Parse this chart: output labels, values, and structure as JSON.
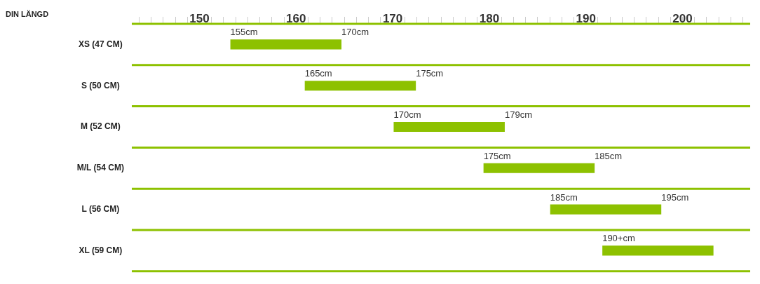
{
  "chart_data": {
    "type": "bar",
    "orientation": "horizontal",
    "xlabel": "DIN LÄNGD",
    "categories": [
      "XS (47 CM)",
      "S (50 CM)",
      "M (52 CM)",
      "M/L (54 CM)",
      "L (56 CM)",
      "XL (59 CM)"
    ],
    "base": [
      153.2,
      160.9,
      170.1,
      179.4,
      186.3,
      191.7
    ],
    "values": [
      11.5,
      11.5,
      11.5,
      11.5,
      11.5,
      11.5
    ],
    "color": "#8dc100",
    "xlim": [
      143,
      207
    ],
    "xticks": [
      {
        "value": 143.75,
        "label": null
      },
      {
        "value": 145,
        "label": null
      },
      {
        "value": 146.25,
        "label": null
      },
      {
        "value": 147.5,
        "label": null
      },
      {
        "value": 148.75,
        "label": null
      },
      150,
      {
        "value": 151.25,
        "label": null
      },
      {
        "value": 152.5,
        "label": null
      },
      {
        "value": 153.75,
        "label": null
      },
      {
        "value": 155,
        "label": null
      },
      {
        "value": 156.25,
        "label": null
      },
      {
        "value": 157.5,
        "label": null
      },
      {
        "value": 158.75,
        "label": null
      },
      160,
      {
        "value": 161.25,
        "label": null
      },
      {
        "value": 162.5,
        "label": null
      },
      {
        "value": 163.75,
        "label": null
      },
      {
        "value": 165,
        "label": null
      },
      {
        "value": 166.25,
        "label": null
      },
      {
        "value": 167.5,
        "label": null
      },
      {
        "value": 168.75,
        "label": null
      },
      170,
      {
        "value": 171.25,
        "label": null
      },
      {
        "value": 172.5,
        "label": null
      },
      {
        "value": 173.75,
        "label": null
      },
      {
        "value": 175,
        "label": null
      },
      {
        "value": 176.25,
        "label": null
      },
      {
        "value": 177.5,
        "label": null
      },
      {
        "value": 178.75,
        "label": null
      },
      180,
      {
        "value": 181.25,
        "label": null
      },
      {
        "value": 182.5,
        "label": null
      },
      {
        "value": 183.75,
        "label": null
      },
      {
        "value": 185,
        "label": null
      },
      {
        "value": 186.25,
        "label": null
      },
      {
        "value": 187.5,
        "label": null
      },
      {
        "value": 188.75,
        "label": null
      },
      190,
      {
        "value": 191.25,
        "label": null
      },
      {
        "value": 192.5,
        "label": null
      },
      {
        "value": 193.75,
        "label": null
      },
      {
        "value": 195,
        "label": null
      },
      {
        "value": 196.25,
        "label": null
      },
      {
        "value": 197.5,
        "label": null
      },
      {
        "value": 198.75,
        "label": null
      },
      200,
      {
        "value": 201.25,
        "label": null
      },
      {
        "value": 202.5,
        "label": null
      },
      {
        "value": 203.75,
        "label": null
      },
      {
        "value": 205,
        "label": null
      },
      {
        "value": 206.25,
        "label": null
      }
    ],
    "grid": "y",
    "legend": false,
    "annotations": [
      {
        "text": "155cm",
        "x": 153.2,
        "y": "XS (47 CM)"
      },
      {
        "text": "170cm",
        "x": 164.7,
        "y": "XS (47 CM)"
      },
      {
        "text": "165cm",
        "x": 160.9,
        "y": "S (50 CM)"
      },
      {
        "text": "175cm",
        "x": 172.4,
        "y": "S (50 CM)"
      },
      {
        "text": "170cm",
        "x": 170.1,
        "y": "M (52 CM)"
      },
      {
        "text": "179cm",
        "x": 181.6,
        "y": "M (52 CM)"
      },
      {
        "text": "175cm",
        "x": 179.4,
        "y": "M/L (54 CM)"
      },
      {
        "text": "185cm",
        "x": 190.9,
        "y": "M/L (54 CM)"
      },
      {
        "text": "185cm",
        "x": 186.3,
        "y": "L (56 CM)"
      },
      {
        "text": "195cm",
        "x": 197.8,
        "y": "L (56 CM)"
      },
      {
        "text": "190+cm",
        "x": 191.7,
        "y": "XL (59 CM)"
      }
    ]
  }
}
